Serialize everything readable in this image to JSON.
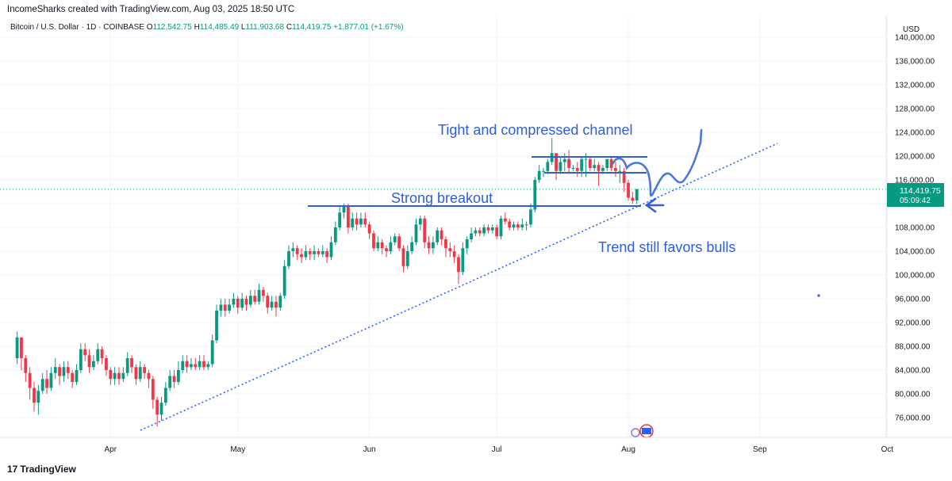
{
  "header": {
    "creator_line": "IncomeSharks created with TradingView.com, Aug 03, 2025 18:50 UTC"
  },
  "symbol": {
    "name": "Bitcoin / U.S. Dollar · 1D · COINBASE",
    "o_label": "O",
    "o_value": "112,542.75",
    "h_label": "H",
    "h_value": "114,485.49",
    "l_label": "L",
    "l_value": "111,903.68",
    "c_label": "C",
    "c_value": "114,419.75",
    "change": "+1,877.01 (+1.67%)"
  },
  "price_axis": {
    "currency": "USD",
    "ticks": [
      "140,000.00",
      "136,000.00",
      "132,000.00",
      "128,000.00",
      "124,000.00",
      "120,000.00",
      "116,000.00",
      "112,000.00",
      "108,000.00",
      "104,000.00",
      "100,000.00",
      "96,000.00",
      "92,000.00",
      "88,000.00",
      "84,000.00",
      "80,000.00",
      "76,000.00"
    ],
    "last_price_label": "114,419.75",
    "countdown": "05:09:42"
  },
  "colors": {
    "up": "#089981",
    "down": "#f23645",
    "annotation": "#2f5fd6",
    "trendline": "#2962ff"
  },
  "annotations": {
    "channel": "Tight and compressed channel",
    "breakout": "Strong breakout",
    "trend": "Trend still favors bulls"
  },
  "footer": {
    "logo_text": "TradingView"
  },
  "chart_data": {
    "type": "candlestick",
    "title": "Bitcoin / U.S. Dollar · 1D · COINBASE",
    "y_unit": "USD",
    "ylim": [
      72000,
      141000
    ],
    "x_ticks": [
      "Apr",
      "May",
      "Jun",
      "Jul",
      "Aug",
      "Sep",
      "Oct"
    ],
    "grid": true,
    "candles": [
      {
        "d": "2025-03-10",
        "o": 86000,
        "c": 89500,
        "h": 90500,
        "l": 85000
      },
      {
        "d": "2025-03-11",
        "o": 89500,
        "c": 86000,
        "h": 89500,
        "l": 84000
      },
      {
        "d": "2025-03-12",
        "o": 86000,
        "c": 83500,
        "h": 86500,
        "l": 82000
      },
      {
        "d": "2025-03-13",
        "o": 83500,
        "c": 81000,
        "h": 84500,
        "l": 79000
      },
      {
        "d": "2025-03-14",
        "o": 81000,
        "c": 78500,
        "h": 82000,
        "l": 77000
      },
      {
        "d": "2025-03-15",
        "o": 78500,
        "c": 80500,
        "h": 81500,
        "l": 76500
      },
      {
        "d": "2025-03-16",
        "o": 80500,
        "c": 82500,
        "h": 83500,
        "l": 80000
      },
      {
        "d": "2025-03-17",
        "o": 82500,
        "c": 81000,
        "h": 84000,
        "l": 80000
      },
      {
        "d": "2025-03-18",
        "o": 81000,
        "c": 83500,
        "h": 84500,
        "l": 80500
      },
      {
        "d": "2025-03-19",
        "o": 83500,
        "c": 84500,
        "h": 86000,
        "l": 82500
      },
      {
        "d": "2025-03-20",
        "o": 84500,
        "c": 83000,
        "h": 85000,
        "l": 81500
      },
      {
        "d": "2025-03-21",
        "o": 83000,
        "c": 84500,
        "h": 85500,
        "l": 82000
      },
      {
        "d": "2025-03-22",
        "o": 84500,
        "c": 83500,
        "h": 85500,
        "l": 82500
      },
      {
        "d": "2025-03-23",
        "o": 83500,
        "c": 82000,
        "h": 84000,
        "l": 81000
      },
      {
        "d": "2025-03-24",
        "o": 82000,
        "c": 84000,
        "h": 85000,
        "l": 81500
      },
      {
        "d": "2025-03-25",
        "o": 84000,
        "c": 87500,
        "h": 88500,
        "l": 83500
      },
      {
        "d": "2025-03-26",
        "o": 87500,
        "c": 86500,
        "h": 88500,
        "l": 85500
      },
      {
        "d": "2025-03-27",
        "o": 86500,
        "c": 84500,
        "h": 87500,
        "l": 83500
      },
      {
        "d": "2025-03-28",
        "o": 84500,
        "c": 85500,
        "h": 86500,
        "l": 84000
      },
      {
        "d": "2025-03-29",
        "o": 85500,
        "c": 87500,
        "h": 88500,
        "l": 85000
      },
      {
        "d": "2025-03-30",
        "o": 87500,
        "c": 86000,
        "h": 88000,
        "l": 85000
      },
      {
        "d": "2025-03-31",
        "o": 86000,
        "c": 84000,
        "h": 86500,
        "l": 83000
      },
      {
        "d": "2025-04-01",
        "o": 84000,
        "c": 82500,
        "h": 84500,
        "l": 81500
      },
      {
        "d": "2025-04-02",
        "o": 82500,
        "c": 83500,
        "h": 84500,
        "l": 81500
      },
      {
        "d": "2025-04-03",
        "o": 83500,
        "c": 82500,
        "h": 84500,
        "l": 81500
      },
      {
        "d": "2025-04-04",
        "o": 82500,
        "c": 83500,
        "h": 84500,
        "l": 82000
      },
      {
        "d": "2025-04-05",
        "o": 83500,
        "c": 86000,
        "h": 87000,
        "l": 83000
      },
      {
        "d": "2025-04-06",
        "o": 86000,
        "c": 84500,
        "h": 86500,
        "l": 83500
      },
      {
        "d": "2025-04-07",
        "o": 84500,
        "c": 82500,
        "h": 85000,
        "l": 81500
      },
      {
        "d": "2025-04-08",
        "o": 82500,
        "c": 84500,
        "h": 85500,
        "l": 82000
      },
      {
        "d": "2025-04-09",
        "o": 84500,
        "c": 83500,
        "h": 85000,
        "l": 82500
      },
      {
        "d": "2025-04-10",
        "o": 83500,
        "c": 82500,
        "h": 84000,
        "l": 81000
      },
      {
        "d": "2025-04-11",
        "o": 82500,
        "c": 79000,
        "h": 83000,
        "l": 77500
      },
      {
        "d": "2025-04-12",
        "o": 79000,
        "c": 76500,
        "h": 79500,
        "l": 74500
      },
      {
        "d": "2025-04-13",
        "o": 76500,
        "c": 78500,
        "h": 79500,
        "l": 75500
      },
      {
        "d": "2025-04-14",
        "o": 78500,
        "c": 81000,
        "h": 82000,
        "l": 78000
      },
      {
        "d": "2025-04-15",
        "o": 81000,
        "c": 83000,
        "h": 84000,
        "l": 80500
      },
      {
        "d": "2025-04-16",
        "o": 83000,
        "c": 82000,
        "h": 84000,
        "l": 81000
      },
      {
        "d": "2025-04-17",
        "o": 82000,
        "c": 84000,
        "h": 85500,
        "l": 81500
      },
      {
        "d": "2025-04-18",
        "o": 84000,
        "c": 85500,
        "h": 86500,
        "l": 83500
      },
      {
        "d": "2025-04-19",
        "o": 85500,
        "c": 84500,
        "h": 86500,
        "l": 83500
      },
      {
        "d": "2025-04-20",
        "o": 84500,
        "c": 85000,
        "h": 86000,
        "l": 84000
      },
      {
        "d": "2025-04-21",
        "o": 85000,
        "c": 84500,
        "h": 86000,
        "l": 84000
      },
      {
        "d": "2025-04-22",
        "o": 84500,
        "c": 85500,
        "h": 86500,
        "l": 84000
      },
      {
        "d": "2025-04-23",
        "o": 85500,
        "c": 84500,
        "h": 86500,
        "l": 84000
      },
      {
        "d": "2025-04-24",
        "o": 84500,
        "c": 85000,
        "h": 85500,
        "l": 84000
      },
      {
        "d": "2025-04-25",
        "o": 85000,
        "c": 89000,
        "h": 90000,
        "l": 84500
      },
      {
        "d": "2025-04-26",
        "o": 89000,
        "c": 94000,
        "h": 95000,
        "l": 88500
      },
      {
        "d": "2025-04-27",
        "o": 94000,
        "c": 95000,
        "h": 96000,
        "l": 93000
      },
      {
        "d": "2025-04-28",
        "o": 95000,
        "c": 94000,
        "h": 96000,
        "l": 93000
      },
      {
        "d": "2025-04-29",
        "o": 94000,
        "c": 95000,
        "h": 96000,
        "l": 93500
      },
      {
        "d": "2025-04-30",
        "o": 95000,
        "c": 96000,
        "h": 97000,
        "l": 94500
      },
      {
        "d": "2025-05-01",
        "o": 96000,
        "c": 94500,
        "h": 96500,
        "l": 93500
      },
      {
        "d": "2025-05-02",
        "o": 94500,
        "c": 96000,
        "h": 97000,
        "l": 94000
      },
      {
        "d": "2025-05-03",
        "o": 96000,
        "c": 95000,
        "h": 96500,
        "l": 94000
      },
      {
        "d": "2025-05-04",
        "o": 95000,
        "c": 96500,
        "h": 97500,
        "l": 94500
      },
      {
        "d": "2025-05-05",
        "o": 96500,
        "c": 95500,
        "h": 97500,
        "l": 95000
      },
      {
        "d": "2025-05-06",
        "o": 95500,
        "c": 97500,
        "h": 98500,
        "l": 95000
      },
      {
        "d": "2025-05-07",
        "o": 97500,
        "c": 96500,
        "h": 98000,
        "l": 95500
      },
      {
        "d": "2025-05-08",
        "o": 96500,
        "c": 94500,
        "h": 97000,
        "l": 93500
      },
      {
        "d": "2025-05-09",
        "o": 94500,
        "c": 95500,
        "h": 96500,
        "l": 94000
      },
      {
        "d": "2025-05-10",
        "o": 95500,
        "c": 94500,
        "h": 96500,
        "l": 93000
      },
      {
        "d": "2025-05-11",
        "o": 94500,
        "c": 96500,
        "h": 97000,
        "l": 94000
      },
      {
        "d": "2025-05-12",
        "o": 96500,
        "c": 101500,
        "h": 102500,
        "l": 96000
      },
      {
        "d": "2025-05-13",
        "o": 101500,
        "c": 104000,
        "h": 105000,
        "l": 101000
      },
      {
        "d": "2025-05-14",
        "o": 104000,
        "c": 104500,
        "h": 105500,
        "l": 103000
      },
      {
        "d": "2025-05-15",
        "o": 104500,
        "c": 103500,
        "h": 105000,
        "l": 102500
      },
      {
        "d": "2025-05-16",
        "o": 103500,
        "c": 103000,
        "h": 104500,
        "l": 102000
      },
      {
        "d": "2025-05-17",
        "o": 103000,
        "c": 104000,
        "h": 105000,
        "l": 102500
      },
      {
        "d": "2025-05-18",
        "o": 104000,
        "c": 103500,
        "h": 104500,
        "l": 102500
      },
      {
        "d": "2025-05-19",
        "o": 103500,
        "c": 104000,
        "h": 105000,
        "l": 102500
      },
      {
        "d": "2025-05-20",
        "o": 104000,
        "c": 103500,
        "h": 104500,
        "l": 103000
      },
      {
        "d": "2025-05-21",
        "o": 103500,
        "c": 104000,
        "h": 105000,
        "l": 103000
      },
      {
        "d": "2025-05-22",
        "o": 104000,
        "c": 103000,
        "h": 104500,
        "l": 102000
      },
      {
        "d": "2025-05-23",
        "o": 103000,
        "c": 105500,
        "h": 106500,
        "l": 102500
      },
      {
        "d": "2025-05-24",
        "o": 105500,
        "c": 108000,
        "h": 109000,
        "l": 105000
      },
      {
        "d": "2025-05-25",
        "o": 108000,
        "c": 110500,
        "h": 111500,
        "l": 107500
      },
      {
        "d": "2025-05-26",
        "o": 110500,
        "c": 111500,
        "h": 112000,
        "l": 109500
      },
      {
        "d": "2025-05-27",
        "o": 111500,
        "c": 108000,
        "h": 112000,
        "l": 107000
      },
      {
        "d": "2025-05-28",
        "o": 108000,
        "c": 109500,
        "h": 110500,
        "l": 107500
      },
      {
        "d": "2025-05-29",
        "o": 109500,
        "c": 108500,
        "h": 110500,
        "l": 107500
      },
      {
        "d": "2025-05-30",
        "o": 108500,
        "c": 109500,
        "h": 110500,
        "l": 108000
      },
      {
        "d": "2025-05-31",
        "o": 109500,
        "c": 108500,
        "h": 110500,
        "l": 108000
      },
      {
        "d": "2025-06-01",
        "o": 108500,
        "c": 107000,
        "h": 109000,
        "l": 106000
      },
      {
        "d": "2025-06-02",
        "o": 107000,
        "c": 104500,
        "h": 107500,
        "l": 104000
      },
      {
        "d": "2025-06-03",
        "o": 104500,
        "c": 105500,
        "h": 106500,
        "l": 104000
      },
      {
        "d": "2025-06-04",
        "o": 105500,
        "c": 104500,
        "h": 106000,
        "l": 103500
      },
      {
        "d": "2025-06-05",
        "o": 104500,
        "c": 104000,
        "h": 105000,
        "l": 103000
      },
      {
        "d": "2025-06-06",
        "o": 104000,
        "c": 105500,
        "h": 106500,
        "l": 103500
      },
      {
        "d": "2025-06-07",
        "o": 105500,
        "c": 106500,
        "h": 107000,
        "l": 105000
      },
      {
        "d": "2025-06-08",
        "o": 106500,
        "c": 104500,
        "h": 107000,
        "l": 104000
      },
      {
        "d": "2025-06-09",
        "o": 104500,
        "c": 101500,
        "h": 105000,
        "l": 100500
      },
      {
        "d": "2025-06-10",
        "o": 101500,
        "c": 104000,
        "h": 105000,
        "l": 101000
      },
      {
        "d": "2025-06-11",
        "o": 104000,
        "c": 105500,
        "h": 106500,
        "l": 103500
      },
      {
        "d": "2025-06-12",
        "o": 105500,
        "c": 108500,
        "h": 109500,
        "l": 105000
      },
      {
        "d": "2025-06-13",
        "o": 108500,
        "c": 109500,
        "h": 110000,
        "l": 107500
      },
      {
        "d": "2025-06-14",
        "o": 109500,
        "c": 105500,
        "h": 110000,
        "l": 104500
      },
      {
        "d": "2025-06-15",
        "o": 105500,
        "c": 104500,
        "h": 106500,
        "l": 103500
      },
      {
        "d": "2025-06-16",
        "o": 104500,
        "c": 105500,
        "h": 106500,
        "l": 103500
      },
      {
        "d": "2025-06-17",
        "o": 105500,
        "c": 107500,
        "h": 108000,
        "l": 105000
      },
      {
        "d": "2025-06-18",
        "o": 107500,
        "c": 106000,
        "h": 108000,
        "l": 105000
      },
      {
        "d": "2025-06-19",
        "o": 106000,
        "c": 104500,
        "h": 106500,
        "l": 103000
      },
      {
        "d": "2025-06-20",
        "o": 104500,
        "c": 104000,
        "h": 105500,
        "l": 103000
      },
      {
        "d": "2025-06-21",
        "o": 104000,
        "c": 103000,
        "h": 105000,
        "l": 102000
      },
      {
        "d": "2025-06-22",
        "o": 103000,
        "c": 100500,
        "h": 103500,
        "l": 98500
      },
      {
        "d": "2025-06-23",
        "o": 100500,
        "c": 104500,
        "h": 105500,
        "l": 100000
      },
      {
        "d": "2025-06-24",
        "o": 104500,
        "c": 106000,
        "h": 106500,
        "l": 103500
      },
      {
        "d": "2025-06-25",
        "o": 106000,
        "c": 107000,
        "h": 108000,
        "l": 105500
      },
      {
        "d": "2025-06-26",
        "o": 107000,
        "c": 107500,
        "h": 108000,
        "l": 106500
      },
      {
        "d": "2025-06-27",
        "o": 107500,
        "c": 107000,
        "h": 108000,
        "l": 106500
      },
      {
        "d": "2025-06-28",
        "o": 107000,
        "c": 108000,
        "h": 108500,
        "l": 106500
      },
      {
        "d": "2025-06-29",
        "o": 108000,
        "c": 107500,
        "h": 108500,
        "l": 107000
      },
      {
        "d": "2025-06-30",
        "o": 107500,
        "c": 108000,
        "h": 108500,
        "l": 107000
      },
      {
        "d": "2025-07-01",
        "o": 108000,
        "c": 106500,
        "h": 108500,
        "l": 106000
      },
      {
        "d": "2025-07-02",
        "o": 106500,
        "c": 109500,
        "h": 110000,
        "l": 106000
      },
      {
        "d": "2025-07-03",
        "o": 109500,
        "c": 109000,
        "h": 110500,
        "l": 108500
      },
      {
        "d": "2025-07-04",
        "o": 109000,
        "c": 108000,
        "h": 109500,
        "l": 107500
      },
      {
        "d": "2025-07-05",
        "o": 108000,
        "c": 108500,
        "h": 109000,
        "l": 107500
      },
      {
        "d": "2025-07-06",
        "o": 108500,
        "c": 108000,
        "h": 109000,
        "l": 107500
      },
      {
        "d": "2025-07-07",
        "o": 108000,
        "c": 108500,
        "h": 109500,
        "l": 107500
      },
      {
        "d": "2025-07-08",
        "o": 108500,
        "c": 108500,
        "h": 109000,
        "l": 107500
      },
      {
        "d": "2025-07-09",
        "o": 108500,
        "c": 111000,
        "h": 112000,
        "l": 108000
      },
      {
        "d": "2025-07-10",
        "o": 111000,
        "c": 116000,
        "h": 116500,
        "l": 110500
      },
      {
        "d": "2025-07-11",
        "o": 116000,
        "c": 117500,
        "h": 118500,
        "l": 115500
      },
      {
        "d": "2025-07-12",
        "o": 117500,
        "c": 117500,
        "h": 118000,
        "l": 116500
      },
      {
        "d": "2025-07-13",
        "o": 117500,
        "c": 119000,
        "h": 119500,
        "l": 117000
      },
      {
        "d": "2025-07-14",
        "o": 119000,
        "c": 120500,
        "h": 123000,
        "l": 118500
      },
      {
        "d": "2025-07-15",
        "o": 120500,
        "c": 117500,
        "h": 120500,
        "l": 116000
      },
      {
        "d": "2025-07-16",
        "o": 117500,
        "c": 119000,
        "h": 120000,
        "l": 117000
      },
      {
        "d": "2025-07-17",
        "o": 119000,
        "c": 119500,
        "h": 120500,
        "l": 117500
      },
      {
        "d": "2025-07-18",
        "o": 119500,
        "c": 118000,
        "h": 121000,
        "l": 117000
      },
      {
        "d": "2025-07-19",
        "o": 118000,
        "c": 118000,
        "h": 118500,
        "l": 117500
      },
      {
        "d": "2025-07-20",
        "o": 118000,
        "c": 117500,
        "h": 119000,
        "l": 116500
      },
      {
        "d": "2025-07-21",
        "o": 117500,
        "c": 119500,
        "h": 120000,
        "l": 116500
      },
      {
        "d": "2025-07-22",
        "o": 119500,
        "c": 119500,
        "h": 120500,
        "l": 116500
      },
      {
        "d": "2025-07-23",
        "o": 119500,
        "c": 118000,
        "h": 120000,
        "l": 117500
      },
      {
        "d": "2025-07-24",
        "o": 118000,
        "c": 118500,
        "h": 119500,
        "l": 117500
      },
      {
        "d": "2025-07-25",
        "o": 118500,
        "c": 117500,
        "h": 119000,
        "l": 115000
      },
      {
        "d": "2025-07-26",
        "o": 117500,
        "c": 118000,
        "h": 118500,
        "l": 117000
      },
      {
        "d": "2025-07-27",
        "o": 118000,
        "c": 119500,
        "h": 119500,
        "l": 117500
      },
      {
        "d": "2025-07-28",
        "o": 119500,
        "c": 118000,
        "h": 120000,
        "l": 117500
      },
      {
        "d": "2025-07-29",
        "o": 118000,
        "c": 117500,
        "h": 119000,
        "l": 116500
      },
      {
        "d": "2025-07-30",
        "o": 117500,
        "c": 117500,
        "h": 118500,
        "l": 115500
      },
      {
        "d": "2025-07-31",
        "o": 117500,
        "c": 115500,
        "h": 118000,
        "l": 114000
      },
      {
        "d": "2025-08-01",
        "o": 115500,
        "c": 113000,
        "h": 116000,
        "l": 112500
      },
      {
        "d": "2025-08-02",
        "o": 113000,
        "c": 112500,
        "h": 114000,
        "l": 112000
      },
      {
        "d": "2025-08-03",
        "o": 112542.75,
        "c": 114419.75,
        "h": 114485.49,
        "l": 111903.68
      }
    ]
  }
}
